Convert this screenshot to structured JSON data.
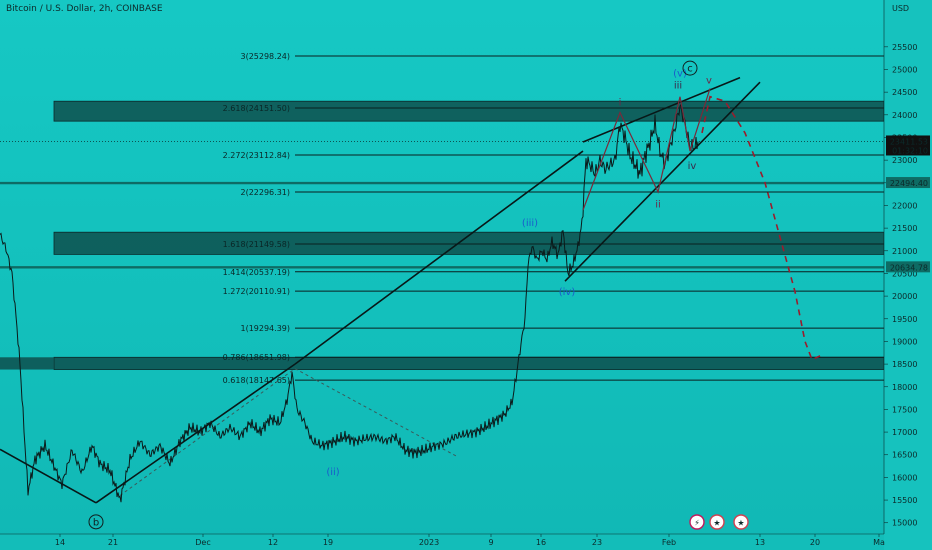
{
  "chart_data": {
    "type": "line",
    "title": "Bitcoin / U.S. Dollar, 2h, COINBASE",
    "currency_label": "USD",
    "ylim": [
      14950,
      26180
    ],
    "y_ticks": [
      15000,
      15500,
      16000,
      16500,
      17000,
      17500,
      18000,
      18500,
      19000,
      19500,
      20000,
      20500,
      21000,
      21500,
      22000,
      22500,
      23000,
      23500,
      24000,
      24500,
      25000,
      25500
    ],
    "x_ticks": [
      "14",
      "21",
      "Dec",
      "12",
      "19",
      "2023",
      "9",
      "16",
      "23",
      "Feb",
      "13",
      "20",
      "Ma"
    ],
    "x_tick_pos": [
      60,
      113,
      203,
      273,
      328,
      429,
      491,
      541,
      597,
      669,
      760,
      815,
      879
    ],
    "price_series": [
      {
        "x": 0,
        "y": 21360
      },
      {
        "x": 6,
        "y": 21050
      },
      {
        "x": 12,
        "y": 20500
      },
      {
        "x": 17,
        "y": 19300
      },
      {
        "x": 20,
        "y": 18500
      },
      {
        "x": 25,
        "y": 16700
      },
      {
        "x": 28,
        "y": 15700
      },
      {
        "x": 35,
        "y": 16400
      },
      {
        "x": 45,
        "y": 16700
      },
      {
        "x": 55,
        "y": 16200
      },
      {
        "x": 62,
        "y": 15850
      },
      {
        "x": 72,
        "y": 16600
      },
      {
        "x": 82,
        "y": 16100
      },
      {
        "x": 92,
        "y": 16700
      },
      {
        "x": 100,
        "y": 16300
      },
      {
        "x": 110,
        "y": 16150
      },
      {
        "x": 120,
        "y": 15500
      },
      {
        "x": 130,
        "y": 16400
      },
      {
        "x": 140,
        "y": 16800
      },
      {
        "x": 150,
        "y": 16500
      },
      {
        "x": 160,
        "y": 16700
      },
      {
        "x": 170,
        "y": 16300
      },
      {
        "x": 180,
        "y": 16800
      },
      {
        "x": 190,
        "y": 17100
      },
      {
        "x": 200,
        "y": 17000
      },
      {
        "x": 210,
        "y": 17200
      },
      {
        "x": 220,
        "y": 16900
      },
      {
        "x": 230,
        "y": 17100
      },
      {
        "x": 240,
        "y": 16900
      },
      {
        "x": 250,
        "y": 17200
      },
      {
        "x": 260,
        "y": 17000
      },
      {
        "x": 270,
        "y": 17300
      },
      {
        "x": 280,
        "y": 17200
      },
      {
        "x": 287,
        "y": 17700
      },
      {
        "x": 292,
        "y": 18300
      },
      {
        "x": 297,
        "y": 17500
      },
      {
        "x": 305,
        "y": 17200
      },
      {
        "x": 312,
        "y": 16800
      },
      {
        "x": 322,
        "y": 16700
      },
      {
        "x": 335,
        "y": 16800
      },
      {
        "x": 345,
        "y": 16900
      },
      {
        "x": 355,
        "y": 16800
      },
      {
        "x": 365,
        "y": 16850
      },
      {
        "x": 375,
        "y": 16900
      },
      {
        "x": 385,
        "y": 16800
      },
      {
        "x": 395,
        "y": 16900
      },
      {
        "x": 405,
        "y": 16600
      },
      {
        "x": 415,
        "y": 16550
      },
      {
        "x": 425,
        "y": 16600
      },
      {
        "x": 435,
        "y": 16700
      },
      {
        "x": 445,
        "y": 16750
      },
      {
        "x": 455,
        "y": 16900
      },
      {
        "x": 465,
        "y": 16950
      },
      {
        "x": 475,
        "y": 17000
      },
      {
        "x": 485,
        "y": 17100
      },
      {
        "x": 495,
        "y": 17250
      },
      {
        "x": 505,
        "y": 17400
      },
      {
        "x": 512,
        "y": 17650
      },
      {
        "x": 516,
        "y": 18200
      },
      {
        "x": 520,
        "y": 18800
      },
      {
        "x": 525,
        "y": 19500
      },
      {
        "x": 528,
        "y": 20700
      },
      {
        "x": 532,
        "y": 21100
      },
      {
        "x": 537,
        "y": 20800
      },
      {
        "x": 542,
        "y": 21000
      },
      {
        "x": 547,
        "y": 20800
      },
      {
        "x": 552,
        "y": 21200
      },
      {
        "x": 558,
        "y": 20900
      },
      {
        "x": 563,
        "y": 21450
      },
      {
        "x": 568,
        "y": 20500
      },
      {
        "x": 573,
        "y": 20700
      },
      {
        "x": 578,
        "y": 21100
      },
      {
        "x": 582,
        "y": 21600
      },
      {
        "x": 586,
        "y": 23000
      },
      {
        "x": 590,
        "y": 22900
      },
      {
        "x": 595,
        "y": 22700
      },
      {
        "x": 600,
        "y": 23000
      },
      {
        "x": 605,
        "y": 22800
      },
      {
        "x": 610,
        "y": 22900
      },
      {
        "x": 615,
        "y": 23000
      },
      {
        "x": 620,
        "y": 23800
      },
      {
        "x": 625,
        "y": 23500
      },
      {
        "x": 630,
        "y": 23100
      },
      {
        "x": 635,
        "y": 22900
      },
      {
        "x": 640,
        "y": 22700
      },
      {
        "x": 645,
        "y": 23100
      },
      {
        "x": 650,
        "y": 23400
      },
      {
        "x": 655,
        "y": 23800
      },
      {
        "x": 660,
        "y": 23200
      },
      {
        "x": 665,
        "y": 22900
      },
      {
        "x": 670,
        "y": 23300
      },
      {
        "x": 675,
        "y": 23700
      },
      {
        "x": 680,
        "y": 24200
      },
      {
        "x": 685,
        "y": 23800
      },
      {
        "x": 690,
        "y": 23300
      },
      {
        "x": 695,
        "y": 23300
      },
      {
        "x": 698,
        "y": 23411
      }
    ],
    "projection": [
      {
        "x": 702,
        "y": 23600
      },
      {
        "x": 710,
        "y": 24400
      },
      {
        "x": 725,
        "y": 24300
      },
      {
        "x": 745,
        "y": 23600
      },
      {
        "x": 765,
        "y": 22500
      },
      {
        "x": 780,
        "y": 21300
      },
      {
        "x": 795,
        "y": 20100
      },
      {
        "x": 805,
        "y": 19000
      },
      {
        "x": 812,
        "y": 18600
      },
      {
        "x": 822,
        "y": 18700
      }
    ],
    "fib_levels": [
      {
        "label": "3(25298.24)",
        "value": 25298.24
      },
      {
        "label": "2.618(24151.50)",
        "value": 24151.5
      },
      {
        "label": "2.272(23112.84)",
        "value": 23112.84
      },
      {
        "label": "2(22296.31)",
        "value": 22296.31
      },
      {
        "label": "1.618(21149.58)",
        "value": 21149.58
      },
      {
        "label": "1.414(20537.19)",
        "value": 20537.19
      },
      {
        "label": "1.272(20110.91)",
        "value": 20110.91
      },
      {
        "label": "1(19294.39)",
        "value": 19294.39
      },
      {
        "label": "0.786(18651.98)",
        "value": 18651.98
      },
      {
        "label": "0.618(18147.65)",
        "value": 18147.65
      }
    ],
    "zones": [
      {
        "from": 24300,
        "to": 23860
      },
      {
        "from": 21410,
        "to": 20920
      },
      {
        "from": 18650,
        "to": 18380
      }
    ],
    "price_tags": [
      {
        "label": "23411.53",
        "sub": "01:32:10",
        "value": 23411.53,
        "bg": "#101010"
      },
      {
        "label": "22494.40",
        "value": 22494.4,
        "bg": "#0e6b64"
      },
      {
        "label": "20634.78",
        "value": 20634.78,
        "bg": "#0e6b64"
      }
    ],
    "wave_labels": [
      {
        "text": "(iii)",
        "x": 530,
        "y": 21550,
        "color": "#1a5ccc"
      },
      {
        "text": "(iv)",
        "x": 567,
        "y": 20020,
        "color": "#1a5ccc"
      },
      {
        "text": "(ii)",
        "x": 333,
        "y": 16050,
        "color": "#1a5ccc"
      },
      {
        "text": "(v)",
        "x": 680,
        "y": 24850,
        "color": "#1a5ccc"
      },
      {
        "text": "iii",
        "x": 678,
        "y": 24580,
        "color": "#3a2a4a"
      },
      {
        "text": "iv",
        "x": 692,
        "y": 22800,
        "color": "#3a2a4a"
      },
      {
        "text": "ii",
        "x": 658,
        "y": 21950,
        "color": "#6a2a4a"
      },
      {
        "text": "i",
        "x": 620,
        "y": 24200,
        "color": "#6a2a4a"
      },
      {
        "text": "v",
        "x": 709,
        "y": 24690,
        "color": "#6a2a4a"
      }
    ],
    "circle_labels": [
      {
        "text": "c",
        "x": 690,
        "y": 25030
      },
      {
        "text": "b",
        "x": 96,
        "y": 15020
      }
    ],
    "trend_lines": [
      {
        "x1": 0,
        "y1": 16620,
        "x2": 96,
        "y2": 15440
      },
      {
        "x1": 96,
        "y1": 15440,
        "x2": 295,
        "y2": 18500
      },
      {
        "x1": 295,
        "y1": 18500,
        "x2": 583,
        "y2": 23200
      },
      {
        "x1": 583,
        "y1": 23400,
        "x2": 740,
        "y2": 24820
      },
      {
        "x1": 565,
        "y1": 20330,
        "x2": 760,
        "y2": 24720
      }
    ],
    "dashed_line": {
      "x1": 295,
      "y1": 18400,
      "x2": 458,
      "y2": 16450
    },
    "grid": false,
    "colors": {
      "background_top": "#16c8c4",
      "background_bottom": "#11b8b5",
      "level_line": "#0a1f1f",
      "zone_fill": "#0e4f4c",
      "price_line": "#0b1a1a",
      "projection": "#9b1c2c",
      "wave_path": "#7a2a3a"
    }
  }
}
